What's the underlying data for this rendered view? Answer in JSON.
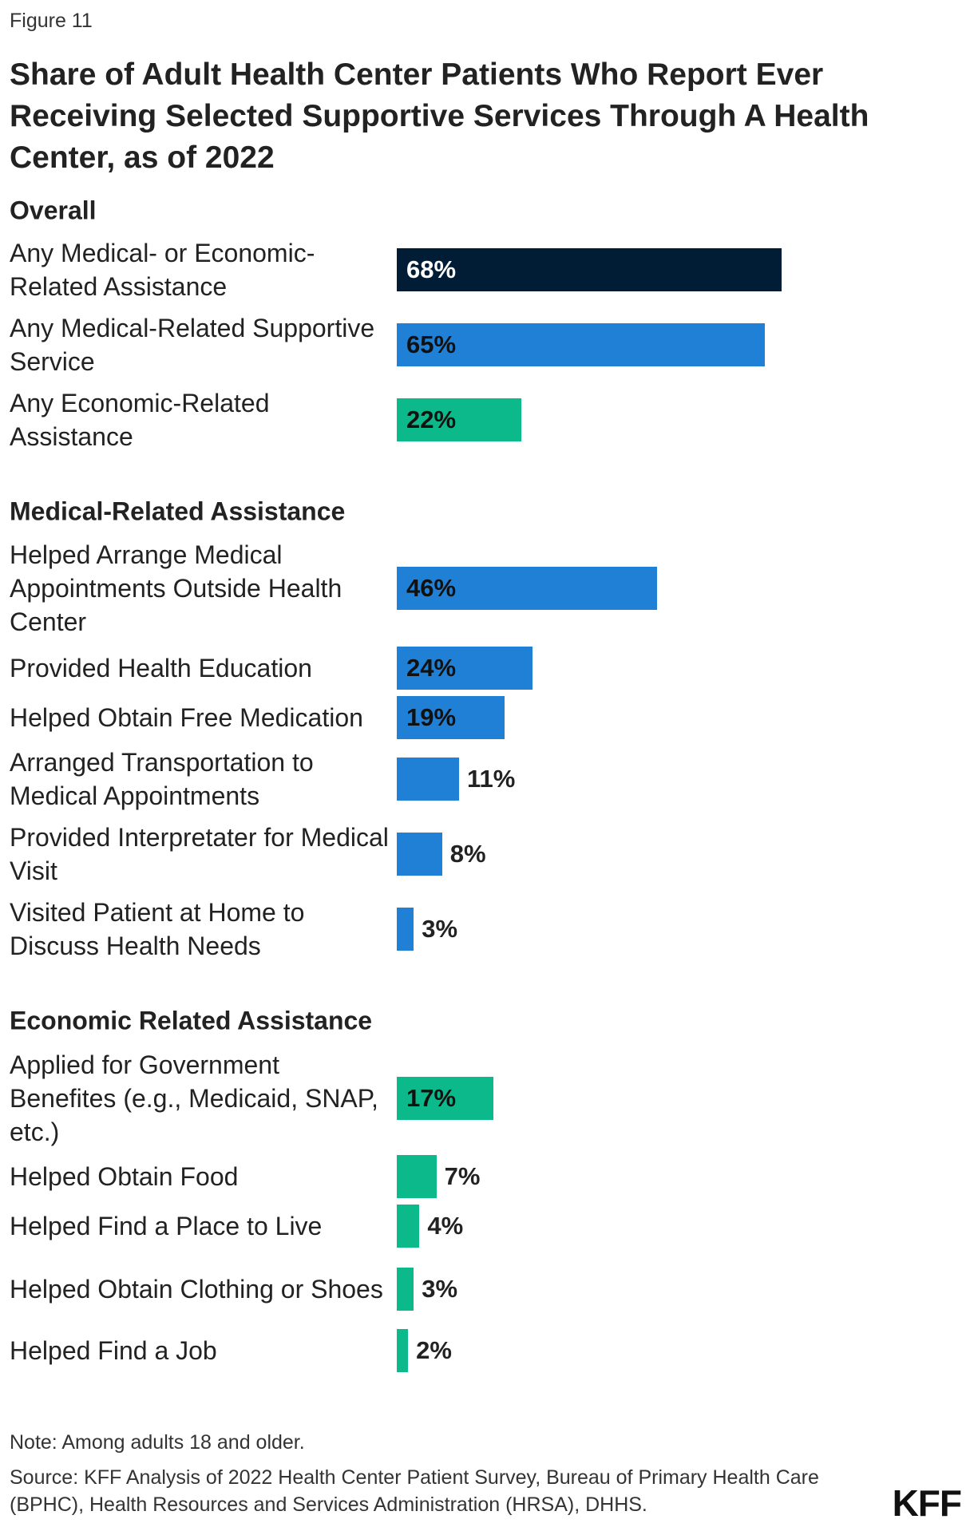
{
  "chart_data": {
    "type": "bar",
    "figure_label": "Figure 11",
    "title": "Share of Adult Health Center Patients Who Report Ever Receiving Selected Supportive Services Through A Health Center, as of 2022",
    "groups": [
      {
        "name": "Overall",
        "categories": [
          "Any Medical- or Economic-Related Assistance",
          "Any Medical-Related Supportive Service",
          "Any Economic-Related Assistance"
        ],
        "values": [
          68,
          65,
          22
        ],
        "value_labels": [
          "68%",
          "65%",
          "22%"
        ],
        "colors": [
          "#001d35",
          "#1f80d6",
          "#0bb98a"
        ]
      },
      {
        "name": "Medical-Related Assistance",
        "categories": [
          "Helped Arrange Medical Appointments Outside Health Center",
          "Provided Health Education",
          "Helped Obtain Free Medication",
          "Arranged Transportation to Medical Appointments",
          "Provided Interpretater for Medical Visit",
          "Visited Patient at Home to Discuss Health Needs"
        ],
        "values": [
          46,
          24,
          19,
          11,
          8,
          3
        ],
        "value_labels": [
          "46%",
          "24%",
          "19%",
          "11%",
          "8%",
          "3%"
        ],
        "colors": [
          "#1f80d6",
          "#1f80d6",
          "#1f80d6",
          "#1f80d6",
          "#1f80d6",
          "#1f80d6"
        ]
      },
      {
        "name": "Economic Related Assistance",
        "categories": [
          "Applied for Government Benefites (e.g., Medicaid, SNAP, etc.)",
          "Helped Obtain Food",
          "Helped Find a Place to Live",
          "Helped Obtain Clothing or Shoes",
          "Helped Find a Job"
        ],
        "values": [
          17,
          7,
          4,
          3,
          2
        ],
        "value_labels": [
          "17%",
          "7%",
          "4%",
          "3%",
          "2%"
        ],
        "colors": [
          "#0bb98a",
          "#0bb98a",
          "#0bb98a",
          "#0bb98a",
          "#0bb98a"
        ]
      }
    ],
    "note": "Note: Among adults 18 and older.",
    "source": "Source: KFF Analysis of 2022 Health Center Patient Survey, Bureau of Primary Health Care (BPHC), Health Resources and Services Administration (HRSA), DHHS.",
    "logo": "KFF"
  }
}
